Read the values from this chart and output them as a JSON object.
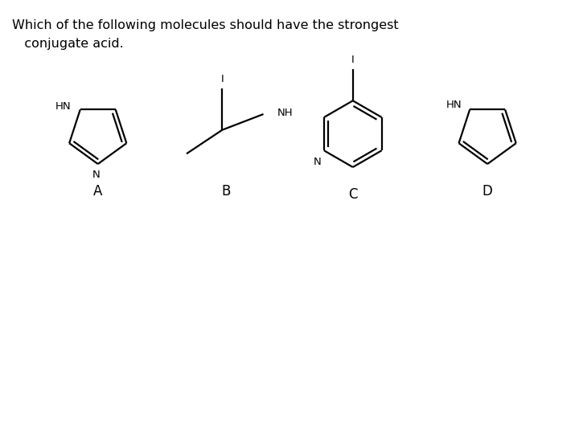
{
  "title_line1": "Which of the following molecules should have the strongest",
  "title_line2": "   conjugate acid.",
  "background_color": "#ffffff",
  "text_color": "#000000",
  "labels": [
    "A",
    "B",
    "C",
    "D"
  ],
  "figsize": [
    7.2,
    5.4
  ],
  "dpi": 100
}
